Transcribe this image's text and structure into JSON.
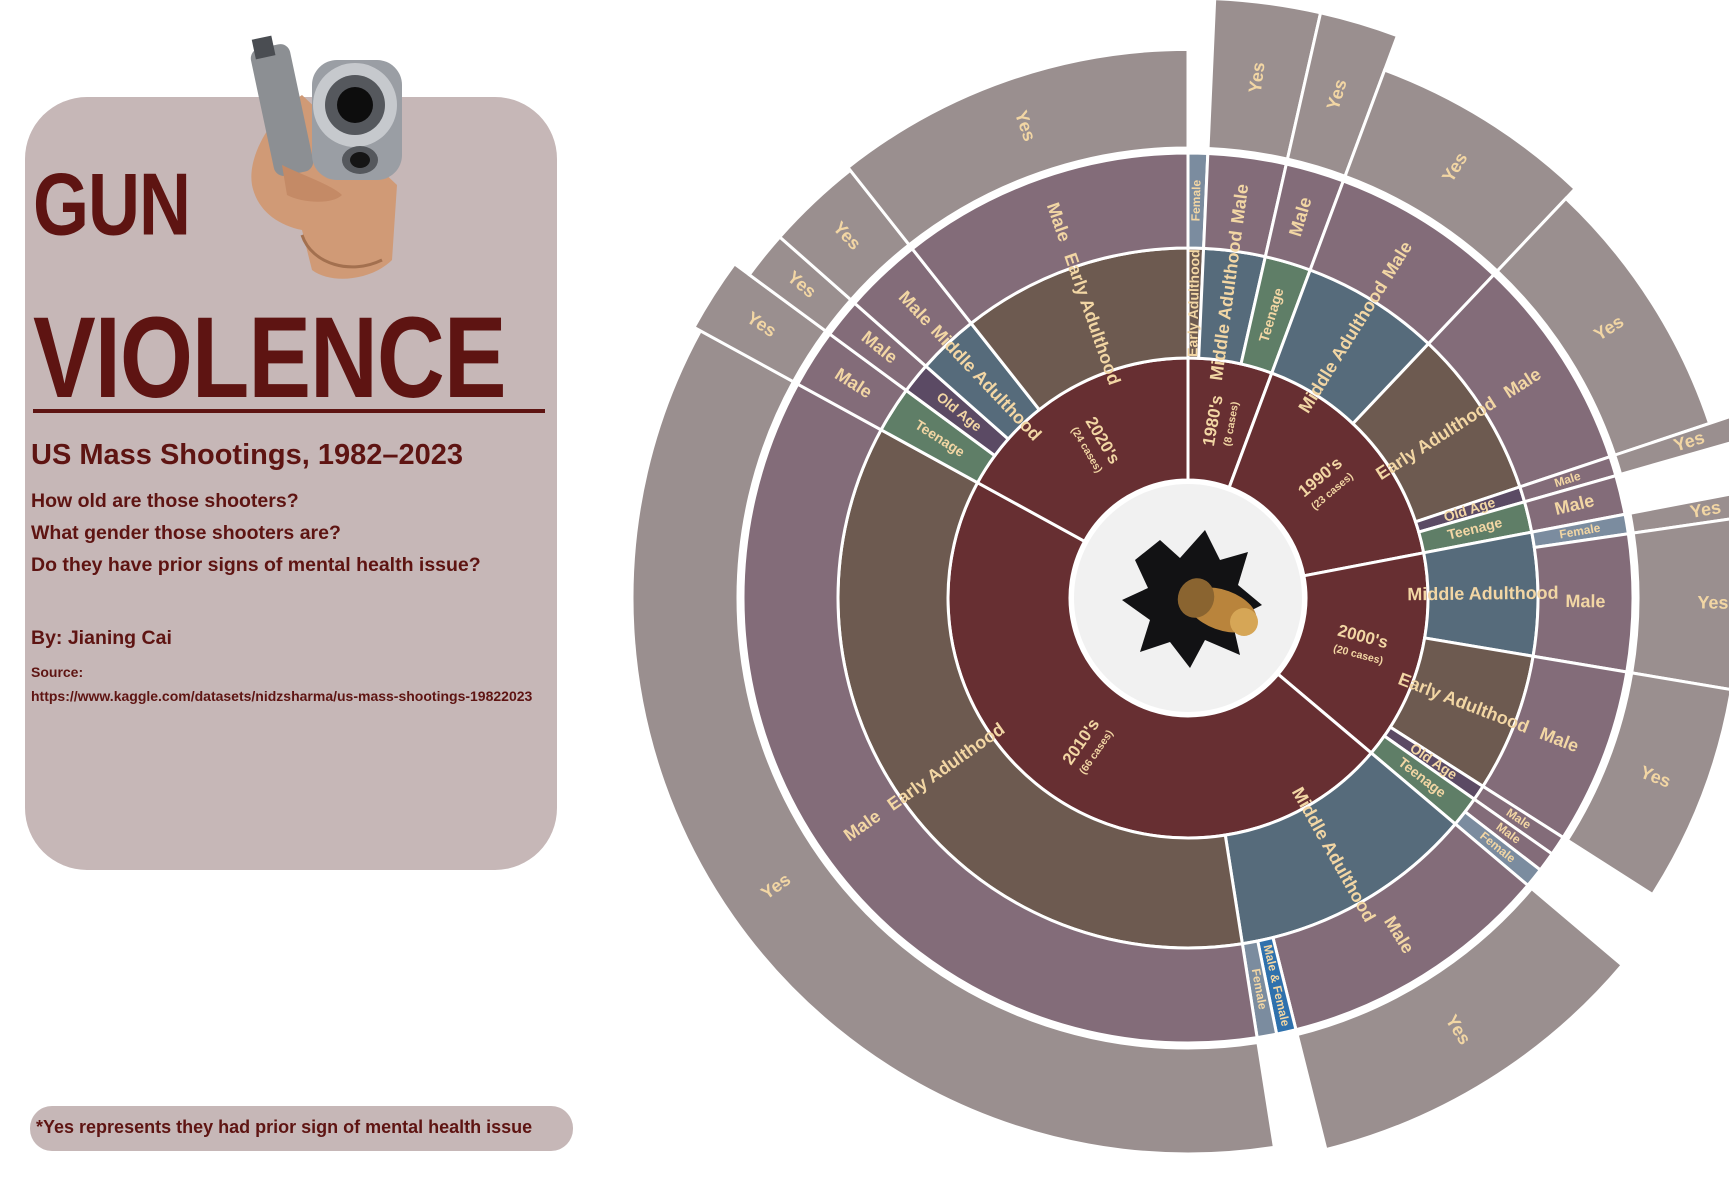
{
  "header": {
    "title_line1": "GUN",
    "title_line2": "VIOLENCE",
    "subtitle": "US Mass Shootings, 1982–2023",
    "questions": [
      "How old are those shooters?",
      "What gender those shooters are?",
      "Do they have prior signs of mental health issue?"
    ],
    "author": "By: Jianing Cai",
    "source_label": "Source:",
    "source_url": "https://www.kaggle.com/datasets/nidzsharma/us-mass-shootings-19822023"
  },
  "footnote": "*Yes represents they had prior sign of mental health issue",
  "images": {
    "gun": "handgun-pointing-image",
    "bullet_hole": "bullet-through-paper-image"
  },
  "colors": {
    "title": "#5e1412",
    "panel": "#c6b7b7",
    "decade": "#672f32",
    "early_adulthood": "#6d5a50",
    "middle_adulthood": "#566b7b",
    "teenage": "#5f7e67",
    "old_age": "#5b4a64",
    "gender_male": "#836c79",
    "gender_female": "#7b8c9f",
    "gender_male_female": "#2f71ad",
    "mental_yes": "#9a8f8f",
    "label": "#f2d6a4"
  },
  "chart_data": {
    "type": "sunburst",
    "levels": [
      "decade",
      "age_group",
      "gender",
      "prior_mental_health_sign"
    ],
    "decades": [
      {
        "label": "1980's",
        "cases_label": "(8 cases)",
        "cases": 8,
        "age_groups": [
          {
            "label": "Early Adulthood",
            "cases": 1,
            "genders": [
              {
                "label": "Female",
                "cases": 1,
                "yes": 0
              }
            ]
          },
          {
            "label": "Middle Adulthood",
            "cases": 4,
            "genders": [
              {
                "label": "Male",
                "cases": 4,
                "yes": 4
              }
            ]
          },
          {
            "label": "Teenage",
            "cases": 3,
            "genders": [
              {
                "label": "Male",
                "cases": 3,
                "yes": 3
              }
            ]
          }
        ]
      },
      {
        "label": "1990's",
        "cases_label": "(23 cases)",
        "cases": 23,
        "age_groups": [
          {
            "label": "Middle Adulthood",
            "cases": 9,
            "genders": [
              {
                "label": "Male",
                "cases": 9,
                "yes": 6
              }
            ]
          },
          {
            "label": "Early Adulthood",
            "cases": 11,
            "genders": [
              {
                "label": "Male",
                "cases": 11,
                "yes": 6
              }
            ]
          },
          {
            "label": "Old Age",
            "cases": 1,
            "genders": [
              {
                "label": "Male",
                "cases": 1,
                "yes": 1
              }
            ]
          },
          {
            "label": "Teenage",
            "cases": 2,
            "genders": [
              {
                "label": "Male",
                "cases": 2,
                "yes": 0
              }
            ]
          }
        ]
      },
      {
        "label": "2000's",
        "cases_label": "(20 cases)",
        "cases": 20,
        "age_groups": [
          {
            "label": "Middle Adulthood",
            "cases": 8,
            "genders": [
              {
                "label": "Female",
                "cases": 1,
                "yes": 1
              },
              {
                "label": "Male",
                "cases": 7,
                "yes": 7
              }
            ]
          },
          {
            "label": "Early Adulthood",
            "cases": 9,
            "genders": [
              {
                "label": "Male",
                "cases": 9,
                "yes": 5
              }
            ]
          },
          {
            "label": "Old Age",
            "cases": 1,
            "genders": [
              {
                "label": "Male",
                "cases": 1,
                "yes": 0
              }
            ]
          },
          {
            "label": "Teenage",
            "cases": 2,
            "genders": [
              {
                "label": "Male",
                "cases": 1,
                "yes": 0
              },
              {
                "label": "Female",
                "cases": 1,
                "yes": 0
              }
            ]
          }
        ]
      },
      {
        "label": "2010's",
        "cases_label": "(66 cases)",
        "cases": 66,
        "age_groups": [
          {
            "label": "Middle Adulthood",
            "cases": 16,
            "genders": [
              {
                "label": "Male",
                "cases": 14,
                "yes": 10
              },
              {
                "label": "Male & Female",
                "cases": 1,
                "yes": 0
              },
              {
                "label": "Female",
                "cases": 1,
                "yes": 0
              }
            ]
          },
          {
            "label": "Early Adulthood",
            "cases": 50,
            "genders": [
              {
                "label": "Male",
                "cases": 50,
                "yes": 30
              }
            ]
          }
        ]
      },
      {
        "label": "2020's",
        "cases_label": "(24 cases)",
        "cases": 24,
        "age_groups": [
          {
            "label": "Teenage",
            "cases": 3,
            "genders": [
              {
                "label": "Male",
                "cases": 3,
                "yes": 2
              }
            ]
          },
          {
            "label": "Old Age",
            "cases": 2,
            "genders": [
              {
                "label": "Male",
                "cases": 2,
                "yes": 1
              }
            ]
          },
          {
            "label": "Middle Adulthood",
            "cases": 4,
            "genders": [
              {
                "label": "Male",
                "cases": 4,
                "yes": 2
              }
            ]
          },
          {
            "label": "Early Adulthood",
            "cases": 15,
            "genders": [
              {
                "label": "Male",
                "cases": 15,
                "yes": 8
              }
            ]
          }
        ]
      }
    ],
    "mental_health_label": "Yes"
  }
}
